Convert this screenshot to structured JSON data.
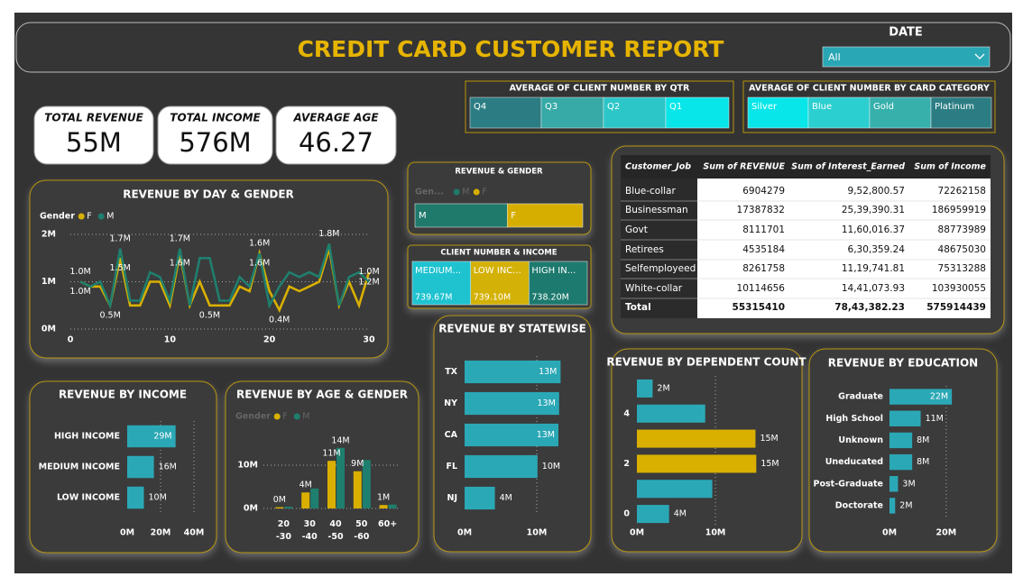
{
  "header": {
    "title": "CREDIT CARD CUSTOMER REPORT"
  },
  "date_slicer": {
    "label": "DATE",
    "value": "All"
  },
  "kpis": [
    {
      "label": "TOTAL REVENUE",
      "value": "55M"
    },
    {
      "label": "TOTAL INCOME",
      "value": "576M"
    },
    {
      "label": "AVERAGE AGE",
      "value": "46.27"
    }
  ],
  "qtr_tiles": {
    "title": "AVERAGE OF CLIENT NUMBER BY QTR",
    "items": [
      {
        "label": "Q4",
        "color": "#2b7d83"
      },
      {
        "label": "Q3",
        "color": "#37a9a6"
      },
      {
        "label": "Q2",
        "color": "#2cc6c8"
      },
      {
        "label": "Q1",
        "color": "#08e6e9"
      }
    ]
  },
  "card_tiles": {
    "title": "AVERAGE OF CLIENT NUMBER BY CARD CATEGORY",
    "items": [
      {
        "label": "Silver",
        "color": "#08e6e9"
      },
      {
        "label": "Blue",
        "color": "#2ccfd0"
      },
      {
        "label": "Gold",
        "color": "#37b0ac"
      },
      {
        "label": "Platinum",
        "color": "#2b7d83"
      }
    ]
  },
  "table": {
    "columns": [
      "Customer_Job",
      "Sum of REVENUE",
      "Sum of Interest_Earned",
      "Sum of Income"
    ],
    "rows": [
      [
        "Blue-collar",
        "6904279",
        "9,52,800.57",
        "72262158"
      ],
      [
        "Businessman",
        "17387832",
        "25,39,390.31",
        "186959919"
      ],
      [
        "Govt",
        "8111701",
        "11,60,016.37",
        "88773989"
      ],
      [
        "Retirees",
        "4535184",
        "6,30,359.24",
        "48675030"
      ],
      [
        "Selfemployeed",
        "8261758",
        "11,19,741.81",
        "75313288"
      ],
      [
        "White-collar",
        "10114656",
        "14,41,073.93",
        "103930055"
      ]
    ],
    "total": [
      "Total",
      "55315410",
      "78,43,382.23",
      "575914439"
    ]
  },
  "chart_data": [
    {
      "type": "line",
      "title": "REVENUE BY DAY & GENDER",
      "legend_title": "Gender",
      "x": [
        1,
        2,
        3,
        4,
        5,
        6,
        7,
        8,
        9,
        10,
        11,
        12,
        13,
        14,
        15,
        16,
        17,
        18,
        19,
        20,
        21,
        22,
        23,
        24,
        25,
        26,
        27,
        28,
        29,
        30
      ],
      "series": [
        {
          "name": "F",
          "color": "#d9b000",
          "values": [
            1.0,
            0.9,
            0.9,
            0.5,
            1.5,
            0.5,
            0.5,
            1.0,
            1.0,
            0.5,
            1.6,
            0.5,
            1.0,
            0.5,
            0.5,
            0.5,
            0.9,
            0.8,
            1.6,
            0.8,
            0.4,
            0.9,
            0.8,
            0.9,
            1.0,
            1.7,
            0.5,
            1.0,
            0.5,
            1.2
          ],
          "value_labels": [
            "1.0M",
            null,
            null,
            "0.5M",
            "1.5M",
            null,
            null,
            null,
            null,
            null,
            "1.6M",
            null,
            null,
            "0.5M",
            null,
            null,
            null,
            null,
            "1.6M",
            null,
            "0.4M",
            null,
            null,
            null,
            null,
            null,
            null,
            null,
            null,
            "1.2M"
          ]
        },
        {
          "name": "M",
          "color": "#1f7f6e",
          "values": [
            1.0,
            0.9,
            1.0,
            0.5,
            1.7,
            0.6,
            0.6,
            1.2,
            1.1,
            0.6,
            1.7,
            0.5,
            1.5,
            1.5,
            0.6,
            0.6,
            1.1,
            0.9,
            1.6,
            0.5,
            0.9,
            1.2,
            1.1,
            1.2,
            1.1,
            1.8,
            0.5,
            1.1,
            1.2,
            1.0
          ],
          "value_labels": [
            "1.0M",
            null,
            null,
            null,
            "1.7M",
            null,
            null,
            null,
            null,
            null,
            "1.7M",
            null,
            null,
            null,
            null,
            null,
            null,
            null,
            "1.6M",
            null,
            null,
            null,
            null,
            null,
            null,
            "1.8M",
            null,
            null,
            null,
            "1.0M"
          ]
        }
      ],
      "xlim": [
        0,
        30
      ],
      "xticks": [
        0,
        10,
        20,
        30
      ],
      "ylim": [
        0,
        2
      ],
      "yticks": [
        {
          "value": 0,
          "label": "0M"
        },
        {
          "value": 1,
          "label": "1M"
        },
        {
          "value": 2,
          "label": "2M"
        }
      ],
      "grid": true
    },
    {
      "type": "barh",
      "title": "REVENUE BY INCOME",
      "categories": [
        "HIGH INCOME",
        "MEDIUM INCOME",
        "LOW INCOME"
      ],
      "values": [
        29,
        16,
        10
      ],
      "value_labels": [
        "29M",
        "16M",
        "10M"
      ],
      "color": "#2ba8b6",
      "xlim": [
        0,
        40
      ],
      "xticks": [
        {
          "value": 0,
          "label": "0M"
        },
        {
          "value": 20,
          "label": "20M"
        },
        {
          "value": 40,
          "label": "40M"
        }
      ],
      "grid": true
    },
    {
      "type": "grouped_bar",
      "title": "REVENUE BY AGE & GENDER",
      "legend_title": "Gender",
      "categories": [
        "20 -30",
        "30 -40",
        "40 -50",
        "50 -60",
        "60+"
      ],
      "series": [
        {
          "name": "F",
          "color": "#d9b000",
          "values": [
            0.3,
            3.7,
            11,
            8.6,
            0.8
          ],
          "value_labels": [
            "0M",
            "4M",
            "11M",
            "9M",
            "1M"
          ]
        },
        {
          "name": "M",
          "color": "#1f7f6e",
          "values": [
            0.4,
            4.6,
            14,
            11.2,
            0.9
          ],
          "value_labels": [
            null,
            null,
            "14M",
            null,
            null
          ]
        }
      ],
      "ylim": [
        0,
        15
      ],
      "yticks": [
        {
          "value": 0,
          "label": "0M"
        },
        {
          "value": 10,
          "label": "10M"
        }
      ],
      "grid": true
    },
    {
      "type": "barh",
      "title": "REVENUE BY STATEWISE",
      "categories": [
        "TX",
        "NY",
        "CA",
        "FL",
        "NJ"
      ],
      "values": [
        13.3,
        13.1,
        13.0,
        10.1,
        4.2
      ],
      "value_labels": [
        "13M",
        "13M",
        "13M",
        "10M",
        "4M"
      ],
      "color": "#2ba8b6",
      "xlim": [
        0,
        15
      ],
      "xticks": [
        {
          "value": 0,
          "label": "0M"
        },
        {
          "value": 10,
          "label": "10M"
        }
      ],
      "grid": true
    },
    {
      "type": "barh",
      "title": "REVENUE BY DEPENDENT COUNT",
      "categories": [
        null,
        "4",
        null,
        "2",
        null,
        "0"
      ],
      "values": [
        2.0,
        8.7,
        15.1,
        15.2,
        9.6,
        4.1
      ],
      "value_labels": [
        "2M",
        null,
        "15M",
        "15M",
        null,
        "4M"
      ],
      "colors": [
        "#2ba8b6",
        "#2ba8b6",
        "#d9b000",
        "#d9b000",
        "#2ba8b6",
        "#2ba8b6"
      ],
      "xlim": [
        0,
        17
      ],
      "xticks": [
        {
          "value": 0,
          "label": "0M"
        },
        {
          "value": 10,
          "label": "10M"
        }
      ],
      "grid": true
    },
    {
      "type": "barh",
      "title": "REVENUE BY EDUCATION",
      "categories": [
        "Graduate",
        "High School",
        "Unknown",
        "Uneducated",
        "Post-Graduate",
        "Doctorate"
      ],
      "values": [
        22,
        11,
        8,
        8,
        3,
        2
      ],
      "value_labels": [
        "22M",
        "11M",
        "8M",
        "8M",
        "3M",
        "2M"
      ],
      "color": "#2ba8b6",
      "xlim": [
        0,
        35
      ],
      "xticks": [
        {
          "value": 0,
          "label": "0M"
        },
        {
          "value": 20,
          "label": "20M"
        }
      ],
      "grid": true
    },
    {
      "type": "stacked_bar_100",
      "title": "REVENUE & GENDER",
      "legend_title": "Gen...",
      "series": [
        {
          "name": "M",
          "color": "#1f7a6c",
          "values": [
            55
          ]
        },
        {
          "name": "F",
          "color": "#d6ae00",
          "values": [
            45
          ]
        }
      ]
    },
    {
      "type": "treemap",
      "title": "CLIENT NUMBER & INCOME",
      "categories": [
        "MEDIUM...",
        "LOW INC...",
        "HIGH IN..."
      ],
      "values": [
        739.67,
        739.1,
        738.2
      ],
      "value_labels": [
        "739.67M",
        "739.10M",
        "738.20M"
      ],
      "colors": [
        "#1fc3d0",
        "#d4b106",
        "#1d7a6e"
      ]
    }
  ]
}
